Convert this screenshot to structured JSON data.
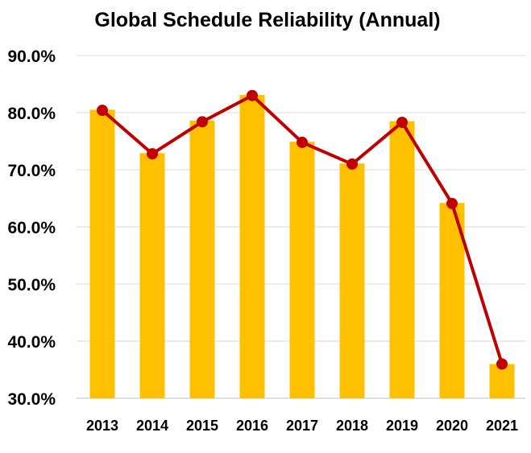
{
  "chart_data": {
    "type": "bar",
    "title": "Global Schedule Reliability (Annual)",
    "xlabel": "",
    "ylabel": "",
    "categories": [
      "2013",
      "2014",
      "2015",
      "2016",
      "2017",
      "2018",
      "2019",
      "2020",
      "2021"
    ],
    "series": [
      {
        "type": "bar",
        "color": "#FFC000",
        "values": [
          80.5,
          72.9,
          78.6,
          83.1,
          74.9,
          71.1,
          78.5,
          64.2,
          36.0
        ]
      },
      {
        "type": "line",
        "color": "#C00000",
        "values": [
          80.4,
          72.8,
          78.4,
          83.0,
          74.8,
          71.0,
          78.3,
          64.1,
          36.0
        ]
      }
    ],
    "ylim": [
      30,
      90
    ],
    "yticks": [
      30,
      40,
      50,
      60,
      70,
      80,
      90
    ],
    "ytick_labels": [
      "30.0%",
      "40.0%",
      "50.0%",
      "60.0%",
      "70.0%",
      "80.0%",
      "90.0%"
    ],
    "grid": true,
    "legend": "none"
  }
}
